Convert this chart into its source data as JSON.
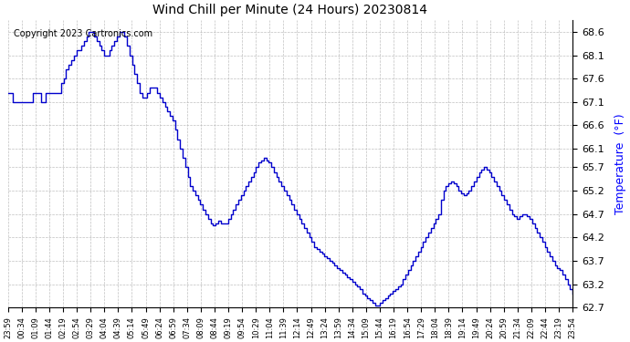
{
  "title": "Wind Chill per Minute (24 Hours) 20230814",
  "ylabel": "Temperature  (°F)",
  "copyright_text": "Copyright 2023 Cartronics.com",
  "line_color": "#0000cc",
  "background_color": "#ffffff",
  "grid_color": "#b0b0b0",
  "ylim": [
    62.7,
    68.85
  ],
  "yticks": [
    62.7,
    63.2,
    63.7,
    64.2,
    64.7,
    65.2,
    65.7,
    66.1,
    66.6,
    67.1,
    67.6,
    68.1,
    68.6
  ],
  "xtick_labels": [
    "23:59",
    "00:34",
    "01:09",
    "01:44",
    "02:19",
    "02:54",
    "03:29",
    "04:04",
    "04:39",
    "05:14",
    "05:49",
    "06:24",
    "06:59",
    "07:34",
    "08:09",
    "08:44",
    "09:19",
    "09:54",
    "10:29",
    "11:04",
    "11:39",
    "12:14",
    "12:49",
    "13:24",
    "13:59",
    "14:34",
    "15:09",
    "15:44",
    "16:19",
    "16:54",
    "17:29",
    "18:04",
    "18:39",
    "19:14",
    "19:49",
    "20:24",
    "20:59",
    "21:34",
    "22:09",
    "22:44",
    "23:19",
    "23:54"
  ],
  "data_y": [
    67.3,
    67.3,
    67.1,
    67.1,
    67.1,
    67.1,
    67.1,
    67.1,
    67.1,
    67.1,
    67.3,
    67.3,
    67.3,
    67.1,
    67.1,
    67.3,
    67.3,
    67.3,
    67.3,
    67.3,
    67.3,
    67.5,
    67.6,
    67.8,
    67.9,
    68.0,
    68.1,
    68.2,
    68.2,
    68.3,
    68.4,
    68.5,
    68.6,
    68.6,
    68.5,
    68.4,
    68.3,
    68.2,
    68.1,
    68.1,
    68.2,
    68.3,
    68.4,
    68.5,
    68.6,
    68.6,
    68.5,
    68.3,
    68.1,
    67.9,
    67.7,
    67.5,
    67.3,
    67.2,
    67.2,
    67.3,
    67.4,
    67.4,
    67.4,
    67.3,
    67.2,
    67.1,
    67.0,
    66.9,
    66.8,
    66.7,
    66.5,
    66.3,
    66.1,
    65.9,
    65.7,
    65.5,
    65.3,
    65.2,
    65.1,
    65.0,
    64.9,
    64.8,
    64.7,
    64.6,
    64.5,
    64.45,
    64.5,
    64.55,
    64.5,
    64.5,
    64.5,
    64.6,
    64.7,
    64.8,
    64.9,
    65.0,
    65.1,
    65.2,
    65.3,
    65.4,
    65.5,
    65.6,
    65.7,
    65.8,
    65.85,
    65.9,
    65.85,
    65.8,
    65.7,
    65.6,
    65.5,
    65.4,
    65.3,
    65.2,
    65.1,
    65.0,
    64.9,
    64.8,
    64.7,
    64.6,
    64.5,
    64.4,
    64.3,
    64.2,
    64.1,
    64.0,
    63.95,
    63.9,
    63.85,
    63.8,
    63.75,
    63.7,
    63.65,
    63.6,
    63.55,
    63.5,
    63.45,
    63.4,
    63.35,
    63.3,
    63.25,
    63.2,
    63.15,
    63.1,
    63.0,
    62.95,
    62.9,
    62.85,
    62.8,
    62.75,
    62.75,
    62.8,
    62.85,
    62.9,
    62.95,
    63.0,
    63.05,
    63.1,
    63.15,
    63.2,
    63.3,
    63.4,
    63.5,
    63.6,
    63.7,
    63.8,
    63.9,
    64.0,
    64.1,
    64.2,
    64.3,
    64.4,
    64.5,
    64.6,
    64.7,
    65.0,
    65.2,
    65.3,
    65.35,
    65.4,
    65.35,
    65.3,
    65.2,
    65.15,
    65.1,
    65.15,
    65.2,
    65.3,
    65.4,
    65.5,
    65.6,
    65.65,
    65.7,
    65.65,
    65.6,
    65.5,
    65.4,
    65.3,
    65.2,
    65.1,
    65.0,
    64.9,
    64.8,
    64.7,
    64.65,
    64.6,
    64.65,
    64.7,
    64.7,
    64.65,
    64.6,
    64.5,
    64.4,
    64.3,
    64.2,
    64.1,
    64.0,
    63.9,
    63.8,
    63.7,
    63.6,
    63.55,
    63.5,
    63.4,
    63.3,
    63.2,
    63.1,
    63.0
  ]
}
